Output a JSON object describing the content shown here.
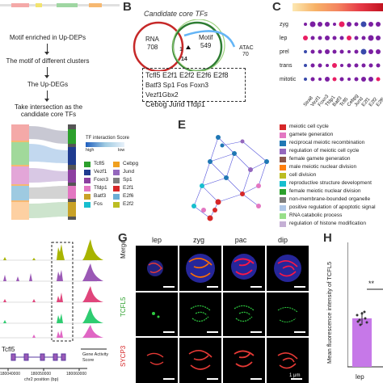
{
  "panelA": {
    "steps": [
      "Motif enriched in Up-DEPs",
      "The motif of different clusters",
      "The Up-DEGs",
      "Take intersection as the candidate core TFs"
    ]
  },
  "panelB": {
    "letter": "B",
    "title": "Candidate core TFs",
    "rna_label": "RNA",
    "rna_count": "708",
    "motif_label": "Motif",
    "motif_count": "549",
    "atac_label": "ATAC",
    "atac_count": "70",
    "center_count": "1",
    "bottom_count": "14",
    "tf_lines": [
      "Tcfl5 E2f1 E2f2 E2f6 E2f8",
      "Batf3 Sp1 Fos Foxn3 Vezf1Gbx2",
      "Cebog Jund Tfdp1"
    ]
  },
  "panelC": {
    "letter": "C",
    "rows": [
      "zyg",
      "lep",
      "prel",
      "trans",
      "mitotic"
    ],
    "cols": [
      "Stra8",
      "Vezf1",
      "Foxn3",
      "Tfdp1",
      "Batf3",
      "Tcfl5",
      "Cebpg",
      "Jund",
      "E2f1",
      "E2f2",
      "E2f6"
    ]
  },
  "panelD": {
    "legend_title": "TF interaction Score",
    "legend_high": "high",
    "legend_low": "low",
    "tfs_left": [
      "Tcfl5",
      "Vezf1",
      "Foxn3",
      "Tfdp1",
      "Batf3",
      "Fos"
    ],
    "tfs_right": [
      "Cebpg",
      "Jund",
      "Sp1",
      "E2f1",
      "E2f6",
      "E2f2"
    ],
    "colors_left": [
      "#2ca02c",
      "#1f3b8f",
      "#8c3fa0",
      "#e377c2",
      "#c9a227",
      "#17becf"
    ],
    "colors_right": [
      "#f0a020",
      "#9467bd",
      "#7f7f7f",
      "#d62728",
      "#6baed6",
      "#bcbd22"
    ]
  },
  "panelE": {
    "letter": "E",
    "terms": [
      "meiotic cell cycle",
      "gamete generation",
      "reciprocal meiotic recombination",
      "regulation of meiotic cell cycle",
      "female gamete generation",
      "male meiotic nuclear division",
      "cell division",
      "reproductive structure development",
      "female meiotic nuclear division",
      "non-membrane-bounded organelle",
      "positive regulation of apoptotic signal",
      "RNA catabolic process",
      "regulation of histone modification"
    ],
    "colors": [
      "#d62728",
      "#e377c2",
      "#1f77b4",
      "#9467bd",
      "#8c564b",
      "#ff7f0e",
      "#bcbd22",
      "#17becf",
      "#2ca02c",
      "#7f7f7f",
      "#aec7e8",
      "#98df8a",
      "#c5b0d5"
    ]
  },
  "panelF": {
    "gene_label": "Tcfl5",
    "x_ticks": [
      "180040000",
      "180050000",
      "180060000"
    ],
    "axis_label": "chr2 position (bp)",
    "gene_activity_label": "Gene Activity Score"
  },
  "panelG": {
    "letter": "G",
    "cols": [
      "lep",
      "zyg",
      "pac",
      "dip"
    ],
    "rows": [
      "Merge",
      "TCFL5",
      "SYCP3"
    ],
    "scale_label": "1 μm"
  },
  "panelH": {
    "letter": "H",
    "ylabel": "Mean fluorescence intensity of TCFL5",
    "xlabel": "lep",
    "sig": "**"
  },
  "chart_data": {
    "type": "bar",
    "categories": [
      "lep"
    ],
    "values": [
      40
    ],
    "xlabel": "lep",
    "ylabel": "Mean fluorescence intensity of TCFL5"
  }
}
